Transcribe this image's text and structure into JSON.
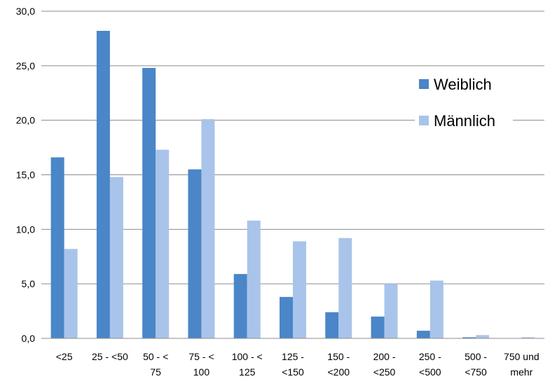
{
  "chart_data": {
    "type": "bar",
    "categories": [
      [
        "<25"
      ],
      [
        "25 - <50"
      ],
      [
        "50 - <",
        "75"
      ],
      [
        "75 - <",
        "100"
      ],
      [
        "100 - <",
        "125"
      ],
      [
        "125 -",
        "<150"
      ],
      [
        "150 -",
        "<200"
      ],
      [
        "200 -",
        "<250"
      ],
      [
        "250 -",
        "<500"
      ],
      [
        "500 -",
        "<750"
      ],
      [
        "750 und",
        "mehr"
      ]
    ],
    "series": [
      {
        "name": "Weiblich",
        "color": "#4A86C8",
        "values": [
          16.6,
          28.2,
          24.8,
          15.5,
          5.9,
          3.8,
          2.4,
          2.0,
          0.7,
          0.1,
          0.0
        ]
      },
      {
        "name": "Männlich",
        "color": "#A9C4EA",
        "values": [
          8.2,
          14.8,
          17.3,
          20.1,
          10.8,
          8.9,
          9.2,
          5.0,
          5.3,
          0.3,
          0.1
        ]
      }
    ],
    "ylim": [
      0,
      30
    ],
    "yticks": [
      "0,0",
      "5,0",
      "10,0",
      "15,0",
      "20,0",
      "25,0",
      "30,0"
    ],
    "grid": true,
    "legend_position": "right"
  }
}
